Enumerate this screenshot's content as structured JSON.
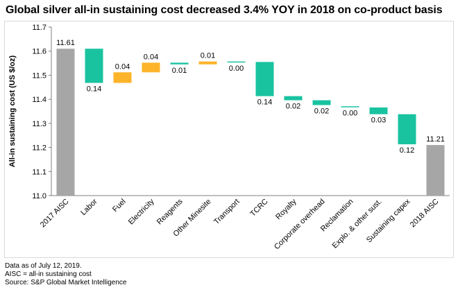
{
  "title": "Global silver all-in sustaining cost decreased 3.4% YOY in 2018 on co-product basis",
  "chart_data": {
    "type": "bar",
    "subtype": "waterfall",
    "title": "Global silver all-in sustaining cost decreased 3.4% YOY in 2018 on co-product basis",
    "xlabel": "",
    "ylabel": "All-in sustaining cost (US $/oz)",
    "ylim": [
      11.0,
      11.7
    ],
    "yticks": [
      11.0,
      11.1,
      11.2,
      11.3,
      11.4,
      11.5,
      11.6,
      11.7
    ],
    "grid": false,
    "legend": "none",
    "categories": [
      "2017 AISC",
      "Labor",
      "Fuel",
      "Electricity",
      "Reagents",
      "Other Minesite",
      "Transport",
      "TCRC",
      "Royalty",
      "Corporate overhead",
      "Reclamation",
      "Explo. & other sust.",
      "Sustaining capex",
      "2018 AISC"
    ],
    "bars": [
      {
        "category": "2017 AISC",
        "kind": "total",
        "start": 11.0,
        "end": 11.61,
        "label": "11.61"
      },
      {
        "category": "Labor",
        "kind": "decrease",
        "start": 11.61,
        "end": 11.468,
        "label": "0.14"
      },
      {
        "category": "Fuel",
        "kind": "increase",
        "start": 11.468,
        "end": 11.512,
        "label": "0.04"
      },
      {
        "category": "Electricity",
        "kind": "increase",
        "start": 11.512,
        "end": 11.552,
        "label": "0.04"
      },
      {
        "category": "Reagents",
        "kind": "decrease",
        "start": 11.552,
        "end": 11.545,
        "label": "0.01"
      },
      {
        "category": "Other Minesite",
        "kind": "increase",
        "start": 11.545,
        "end": 11.557,
        "label": "0.01"
      },
      {
        "category": "Transport",
        "kind": "decrease",
        "start": 11.557,
        "end": 11.555,
        "label": "0.00"
      },
      {
        "category": "TCRC",
        "kind": "decrease",
        "start": 11.555,
        "end": 11.413,
        "label": "0.14"
      },
      {
        "category": "Royalty",
        "kind": "decrease",
        "start": 11.413,
        "end": 11.396,
        "label": "0.02"
      },
      {
        "category": "Corporate overhead",
        "kind": "decrease",
        "start": 11.396,
        "end": 11.376,
        "label": "0.02"
      },
      {
        "category": "Reclamation",
        "kind": "decrease",
        "start": 11.371,
        "end": 11.367,
        "label": "0.00"
      },
      {
        "category": "Explo. & other sust.",
        "kind": "decrease",
        "start": 11.366,
        "end": 11.338,
        "label": "0.03"
      },
      {
        "category": "Sustaining capex",
        "kind": "decrease",
        "start": 11.338,
        "end": 11.213,
        "label": "0.12"
      },
      {
        "category": "2018 AISC",
        "kind": "total",
        "start": 11.0,
        "end": 11.21,
        "label": "11.21"
      }
    ],
    "colors": {
      "total": "#a6a6a6",
      "decrease": "#19c3a0",
      "increase": "#fdb42b"
    }
  },
  "notes": [
    "Data as of July 12, 2019.",
    "AISC = all-in sustaining cost",
    "Source: S&P Global Market Intelligence"
  ]
}
